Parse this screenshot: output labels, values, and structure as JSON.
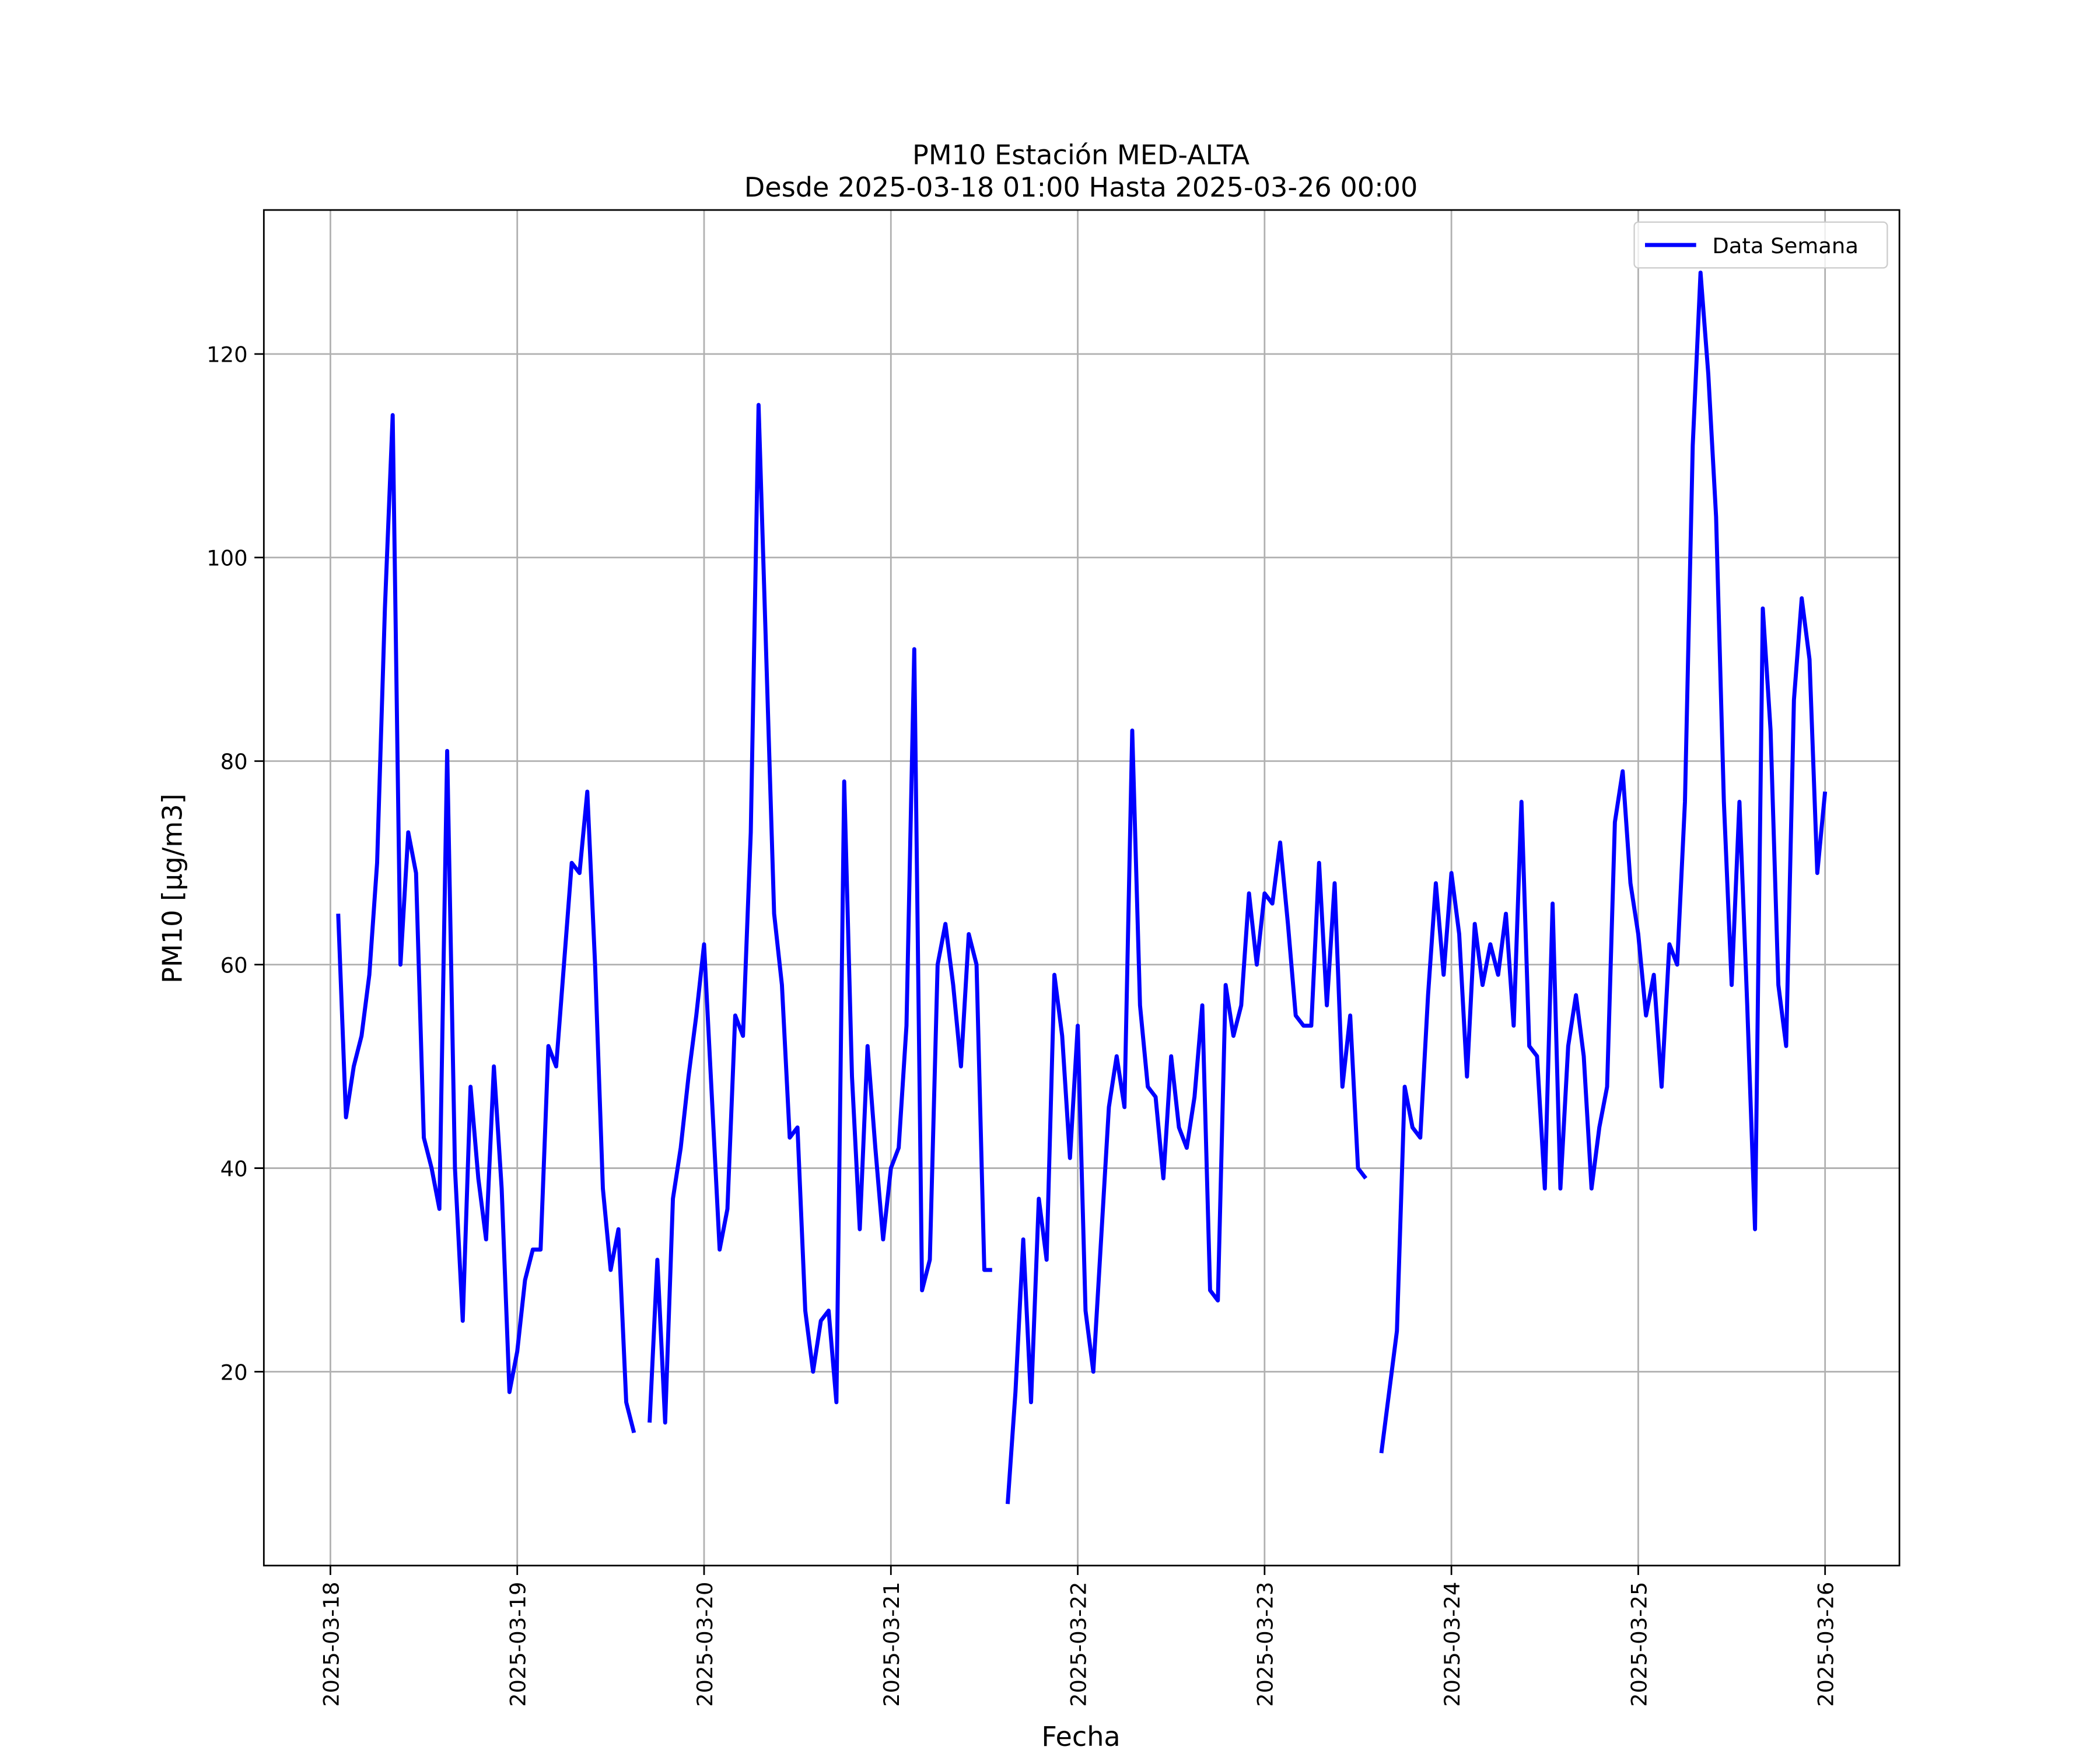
{
  "chart_data": {
    "type": "line",
    "title": "PM10 Estación MED-ALTA",
    "subtitle": "Desde 2025-03-18 01:00 Hasta 2025-03-26 00:00",
    "xlabel": "Fecha",
    "ylabel": "PM10 [μg/m3]",
    "x": [
      "2025-03-18 01:00",
      "2025-03-18 02:00",
      "2025-03-18 03:00",
      "2025-03-18 04:00",
      "2025-03-18 05:00",
      "2025-03-18 06:00",
      "2025-03-18 07:00",
      "2025-03-18 08:00",
      "2025-03-18 09:00",
      "2025-03-18 10:00",
      "2025-03-18 11:00",
      "2025-03-18 12:00",
      "2025-03-18 13:00",
      "2025-03-18 14:00",
      "2025-03-18 15:00",
      "2025-03-18 16:00",
      "2025-03-18 17:00",
      "2025-03-18 18:00",
      "2025-03-18 19:00",
      "2025-03-18 20:00",
      "2025-03-18 21:00",
      "2025-03-18 22:00",
      "2025-03-18 23:00",
      "2025-03-19 00:00",
      "2025-03-19 01:00",
      "2025-03-19 02:00",
      "2025-03-19 03:00",
      "2025-03-19 04:00",
      "2025-03-19 05:00",
      "2025-03-19 06:00",
      "2025-03-19 07:00",
      "2025-03-19 08:00",
      "2025-03-19 09:00",
      "2025-03-19 10:00",
      "2025-03-19 11:00",
      "2025-03-19 12:00",
      "2025-03-19 13:00",
      "2025-03-19 14:00",
      "2025-03-19 15:00",
      "2025-03-19 16:00",
      "2025-03-19 17:00",
      "2025-03-19 18:00",
      "2025-03-19 19:00",
      "2025-03-19 20:00",
      "2025-03-19 21:00",
      "2025-03-19 22:00",
      "2025-03-19 23:00",
      "2025-03-20 00:00",
      "2025-03-20 01:00",
      "2025-03-20 02:00",
      "2025-03-20 03:00",
      "2025-03-20 04:00",
      "2025-03-20 05:00",
      "2025-03-20 06:00",
      "2025-03-20 07:00",
      "2025-03-20 08:00",
      "2025-03-20 09:00",
      "2025-03-20 10:00",
      "2025-03-20 11:00",
      "2025-03-20 12:00",
      "2025-03-20 13:00",
      "2025-03-20 14:00",
      "2025-03-20 15:00",
      "2025-03-20 16:00",
      "2025-03-20 17:00",
      "2025-03-20 18:00",
      "2025-03-20 19:00",
      "2025-03-20 20:00",
      "2025-03-20 21:00",
      "2025-03-20 22:00",
      "2025-03-20 23:00",
      "2025-03-21 00:00",
      "2025-03-21 01:00",
      "2025-03-21 02:00",
      "2025-03-21 03:00",
      "2025-03-21 04:00",
      "2025-03-21 05:00",
      "2025-03-21 06:00",
      "2025-03-21 07:00",
      "2025-03-21 08:00",
      "2025-03-21 09:00",
      "2025-03-21 10:00",
      "2025-03-21 11:00",
      "2025-03-21 12:00",
      "2025-03-21 13:00",
      "2025-03-21 14:00",
      "2025-03-21 15:00",
      "2025-03-21 16:00",
      "2025-03-21 17:00",
      "2025-03-21 18:00",
      "2025-03-21 19:00",
      "2025-03-21 20:00",
      "2025-03-21 21:00",
      "2025-03-21 22:00",
      "2025-03-21 23:00",
      "2025-03-22 00:00",
      "2025-03-22 01:00",
      "2025-03-22 02:00",
      "2025-03-22 03:00",
      "2025-03-22 04:00",
      "2025-03-22 05:00",
      "2025-03-22 06:00",
      "2025-03-22 07:00",
      "2025-03-22 08:00",
      "2025-03-22 09:00",
      "2025-03-22 10:00",
      "2025-03-22 11:00",
      "2025-03-22 12:00",
      "2025-03-22 13:00",
      "2025-03-22 14:00",
      "2025-03-22 15:00",
      "2025-03-22 16:00",
      "2025-03-22 17:00",
      "2025-03-22 18:00",
      "2025-03-22 19:00",
      "2025-03-22 20:00",
      "2025-03-22 21:00",
      "2025-03-22 22:00",
      "2025-03-22 23:00",
      "2025-03-23 00:00",
      "2025-03-23 01:00",
      "2025-03-23 02:00",
      "2025-03-23 03:00",
      "2025-03-23 04:00",
      "2025-03-23 05:00",
      "2025-03-23 06:00",
      "2025-03-23 07:00",
      "2025-03-23 08:00",
      "2025-03-23 09:00",
      "2025-03-23 10:00",
      "2025-03-23 11:00",
      "2025-03-23 12:00",
      "2025-03-23 13:00",
      "2025-03-23 14:00",
      "2025-03-23 15:00",
      "2025-03-23 16:00",
      "2025-03-23 17:00",
      "2025-03-23 18:00",
      "2025-03-23 19:00",
      "2025-03-23 20:00",
      "2025-03-23 21:00",
      "2025-03-23 22:00",
      "2025-03-23 23:00",
      "2025-03-24 00:00",
      "2025-03-24 01:00",
      "2025-03-24 02:00",
      "2025-03-24 03:00",
      "2025-03-24 04:00",
      "2025-03-24 05:00",
      "2025-03-24 06:00",
      "2025-03-24 07:00",
      "2025-03-24 08:00",
      "2025-03-24 09:00",
      "2025-03-24 10:00",
      "2025-03-24 11:00",
      "2025-03-24 12:00",
      "2025-03-24 13:00",
      "2025-03-24 14:00",
      "2025-03-24 15:00",
      "2025-03-24 16:00",
      "2025-03-24 17:00",
      "2025-03-24 18:00",
      "2025-03-24 19:00",
      "2025-03-24 20:00",
      "2025-03-24 21:00",
      "2025-03-24 22:00",
      "2025-03-24 23:00",
      "2025-03-25 00:00",
      "2025-03-25 01:00",
      "2025-03-25 02:00",
      "2025-03-25 03:00",
      "2025-03-25 04:00",
      "2025-03-25 05:00",
      "2025-03-25 06:00",
      "2025-03-25 07:00",
      "2025-03-25 08:00",
      "2025-03-25 09:00",
      "2025-03-25 10:00",
      "2025-03-25 11:00",
      "2025-03-25 12:00",
      "2025-03-25 13:00",
      "2025-03-25 14:00",
      "2025-03-25 15:00",
      "2025-03-25 16:00",
      "2025-03-25 17:00",
      "2025-03-25 18:00",
      "2025-03-25 19:00",
      "2025-03-25 20:00",
      "2025-03-25 21:00",
      "2025-03-25 22:00",
      "2025-03-25 23:00",
      "2025-03-26 00:00"
    ],
    "series": [
      {
        "name": "Data Semana",
        "color": "#0000ff",
        "values": [
          65,
          45,
          50,
          53,
          59,
          70,
          95,
          114,
          60,
          73,
          69,
          43,
          40,
          36,
          81,
          40,
          25,
          48,
          39,
          33,
          50,
          38,
          18,
          22,
          29,
          32,
          32,
          52,
          50,
          60,
          70,
          69,
          77,
          60,
          38,
          30,
          34,
          17,
          14,
          null,
          15,
          31,
          15,
          37,
          42,
          49,
          55,
          62,
          47,
          32,
          36,
          55,
          53,
          73,
          115,
          90,
          65,
          58,
          43,
          44,
          26,
          20,
          25,
          26,
          17,
          78,
          49,
          34,
          52,
          42,
          33,
          40,
          42,
          54,
          91,
          28,
          31,
          60,
          64,
          58,
          50,
          63,
          60,
          30,
          30,
          null,
          7,
          18,
          33,
          17,
          37,
          31,
          59,
          53,
          41,
          54,
          26,
          20,
          33,
          46,
          51,
          46,
          83,
          56,
          48,
          47,
          39,
          51,
          44,
          42,
          47,
          56,
          28,
          27,
          58,
          53,
          56,
          67,
          60,
          67,
          66,
          72,
          64,
          55,
          54,
          54,
          70,
          56,
          68,
          48,
          55,
          40,
          39,
          null,
          12,
          18,
          24,
          48,
          44,
          43,
          57,
          68,
          59,
          69,
          63,
          49,
          64,
          58,
          62,
          59,
          65,
          54,
          76,
          52,
          51,
          38,
          66,
          38,
          52,
          57,
          51,
          38,
          44,
          48,
          74,
          79,
          68,
          63,
          55,
          59,
          48,
          62,
          60,
          76,
          111,
          128,
          118,
          104,
          76,
          58,
          76,
          56,
          34,
          95,
          83,
          58,
          52,
          86,
          96,
          90,
          69,
          77
        ]
      }
    ],
    "xlim": [
      "2025-03-17 15:27",
      "2025-03-26 09:33"
    ],
    "xticks": [
      "2025-03-18",
      "2025-03-19",
      "2025-03-20",
      "2025-03-21",
      "2025-03-22",
      "2025-03-23",
      "2025-03-24",
      "2025-03-25",
      "2025-03-26"
    ],
    "ylim": [
      0.95,
      134.15
    ],
    "yticks": [
      20,
      40,
      60,
      80,
      100,
      120
    ],
    "grid": true,
    "legend": "upper right"
  }
}
